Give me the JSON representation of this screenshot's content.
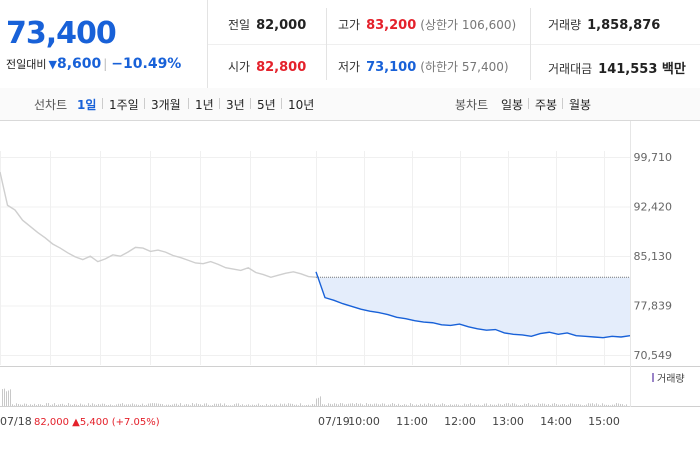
{
  "quote": {
    "price": "73,400",
    "change_label": "전일대비",
    "change_arrow": "▼",
    "change_value": "8,600",
    "change_pct": "−10.49%"
  },
  "stats": {
    "prev_close_label": "전일",
    "prev_close": "82,000",
    "high_label": "고가",
    "high": "83,200",
    "upper_limit": "(상한가 106,600)",
    "volume_label": "거래량",
    "volume": "1,858,876",
    "open_label": "시가",
    "open": "82,800",
    "low_label": "저가",
    "low": "73,100",
    "lower_limit": "(하한가 57,400)",
    "turnover_label": "거래대금",
    "turnover": "141,553 백만"
  },
  "toolbar": {
    "line_label": "선차트",
    "periods": [
      "1일",
      "1주일",
      "3개월",
      "1년",
      "3년",
      "5년",
      "10년"
    ],
    "active_period": "1일",
    "candle_label": "봉차트",
    "candle_periods": [
      "일봉",
      "주봉",
      "월봉"
    ]
  },
  "colors": {
    "blue": "#1861d8",
    "red": "#e4212b",
    "gray_line": "#cfcfcf",
    "fill": "#e4edfb"
  },
  "chart_data": {
    "type": "line",
    "y_ticks": [
      "99,710",
      "92,420",
      "85,130",
      "77,839",
      "70,549"
    ],
    "ylim": [
      70549,
      99710
    ],
    "x_ticks": [
      "07/18",
      "07/19",
      "10:00",
      "11:00",
      "12:00",
      "13:00",
      "14:00",
      "15:00"
    ],
    "prev_close": 82000,
    "series": [
      {
        "date": "07/18",
        "values": [
          97500,
          92600,
          91900,
          90400,
          89500,
          88600,
          87800,
          86900,
          86300,
          85600,
          85000,
          84600,
          85100,
          84300,
          84700,
          85300,
          85100,
          85700,
          86400,
          86300,
          85800,
          86000,
          85700,
          85200,
          84900,
          84500,
          84100,
          84000,
          84300,
          83900,
          83400,
          83200,
          83000,
          83400,
          82700,
          82400,
          82000,
          82300,
          82600,
          82800,
          82500,
          82100,
          82000
        ]
      },
      {
        "date": "07/19",
        "values": [
          82800,
          79000,
          78600,
          78100,
          77700,
          77300,
          77000,
          76800,
          76500,
          76100,
          75900,
          75600,
          75400,
          75300,
          75000,
          74900,
          75100,
          74700,
          74400,
          74200,
          74300,
          73800,
          73600,
          73500,
          73300,
          73700,
          73900,
          73600,
          73800,
          73400,
          73300,
          73200,
          73100,
          73300,
          73200,
          73400
        ]
      }
    ],
    "volume_legend": "거래량",
    "footer": {
      "date": "07/18",
      "close": "82,000",
      "arrow": "▲",
      "change": "5,400",
      "pct": "(+7.05%)"
    }
  }
}
